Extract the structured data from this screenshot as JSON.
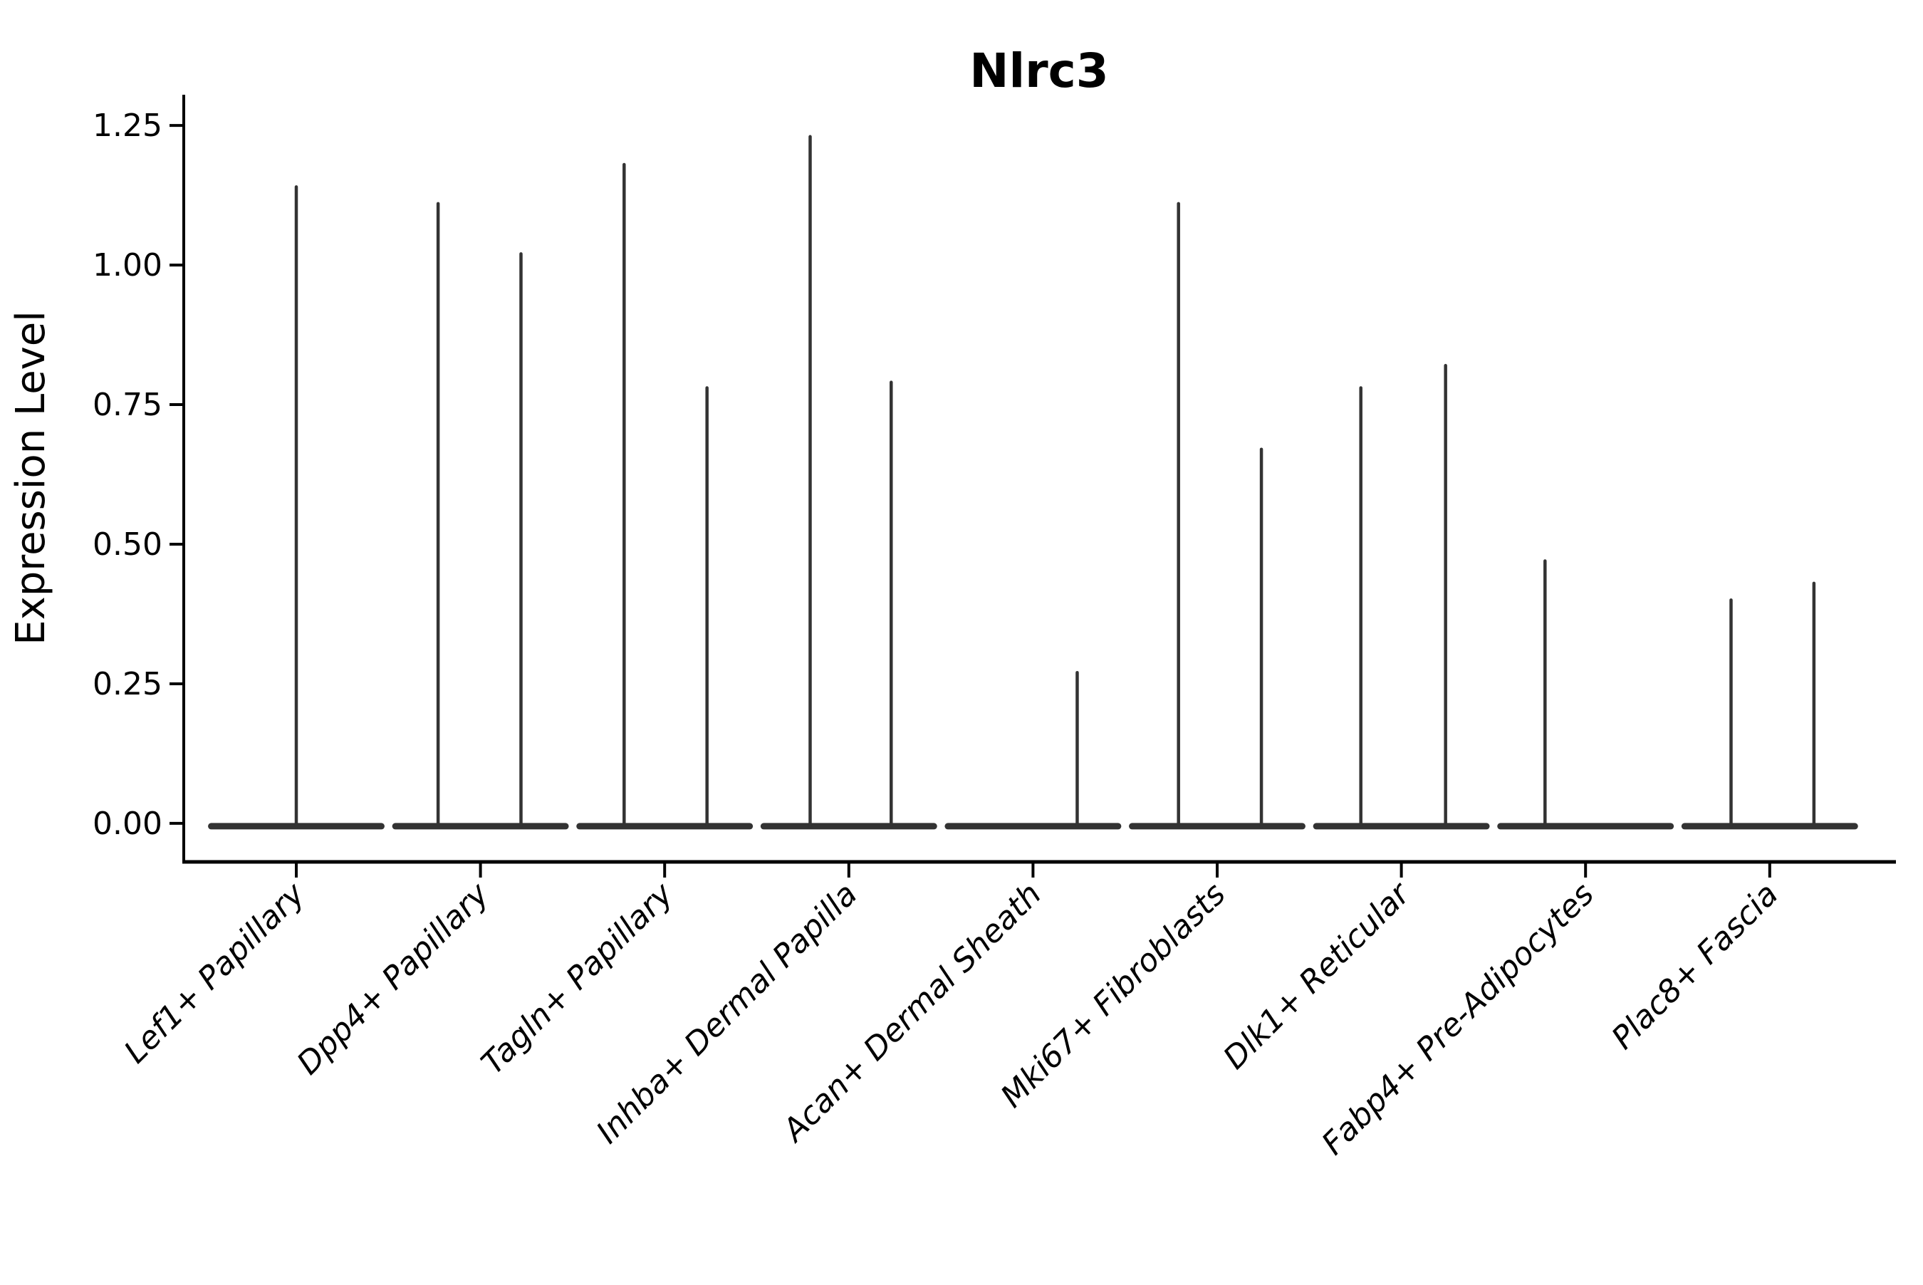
{
  "title": "Nlrc3",
  "chart_data": {
    "type": "violin",
    "title": "Nlrc3",
    "ylabel": "Expression Level",
    "xlabel": "",
    "grid": false,
    "legend": null,
    "ylim": [
      -0.069,
      1.305
    ],
    "yticks": [
      "0.00",
      "0.25",
      "0.50",
      "0.75",
      "1.00",
      "1.25"
    ],
    "ytick_values": [
      0.0,
      0.25,
      0.5,
      0.75,
      1.0,
      1.25
    ],
    "violin_color": "#333333",
    "base_halfwidth": 0.462,
    "categories": [
      "Lef1+ Papillary",
      "Dpp4+ Papillary",
      "Tagln+ Papillary",
      "Inhba+ Dermal Papilla",
      "Acan+ Dermal Sheath",
      "Mki67+ Fibroblasts",
      "Dlk1+ Reticular",
      "Fabp4+ Pre-Adipocytes",
      "Plac8+ Fascia"
    ],
    "series": [
      {
        "category": "Lef1+ Papillary",
        "violins": [
          {
            "offset": 0.0,
            "max": 1.14
          }
        ]
      },
      {
        "category": "Dpp4+ Papillary",
        "violins": [
          {
            "offset": -0.23,
            "max": 1.11
          },
          {
            "offset": 0.22,
            "max": 1.02
          }
        ]
      },
      {
        "category": "Tagln+ Papillary",
        "violins": [
          {
            "offset": -0.22,
            "max": 1.18
          },
          {
            "offset": 0.23,
            "max": 0.78
          }
        ]
      },
      {
        "category": "Inhba+ Dermal Papilla",
        "violins": [
          {
            "offset": -0.21,
            "max": 1.23
          },
          {
            "offset": 0.23,
            "max": 0.79
          }
        ]
      },
      {
        "category": "Acan+ Dermal Sheath",
        "violins": [
          {
            "offset": 0.24,
            "max": 0.27
          }
        ]
      },
      {
        "category": "Mki67+ Fibroblasts",
        "violins": [
          {
            "offset": -0.21,
            "max": 1.11
          },
          {
            "offset": 0.24,
            "max": 0.67
          }
        ]
      },
      {
        "category": "Dlk1+ Reticular",
        "violins": [
          {
            "offset": -0.22,
            "max": 0.78
          },
          {
            "offset": 0.24,
            "max": 0.82
          }
        ]
      },
      {
        "category": "Fabp4+ Pre-Adipocytes",
        "violins": [
          {
            "offset": -0.22,
            "max": 0.47
          }
        ]
      },
      {
        "category": "Plac8+ Fascia",
        "violins": [
          {
            "offset": -0.21,
            "max": 0.4
          },
          {
            "offset": 0.24,
            "max": 0.43
          }
        ]
      }
    ]
  }
}
